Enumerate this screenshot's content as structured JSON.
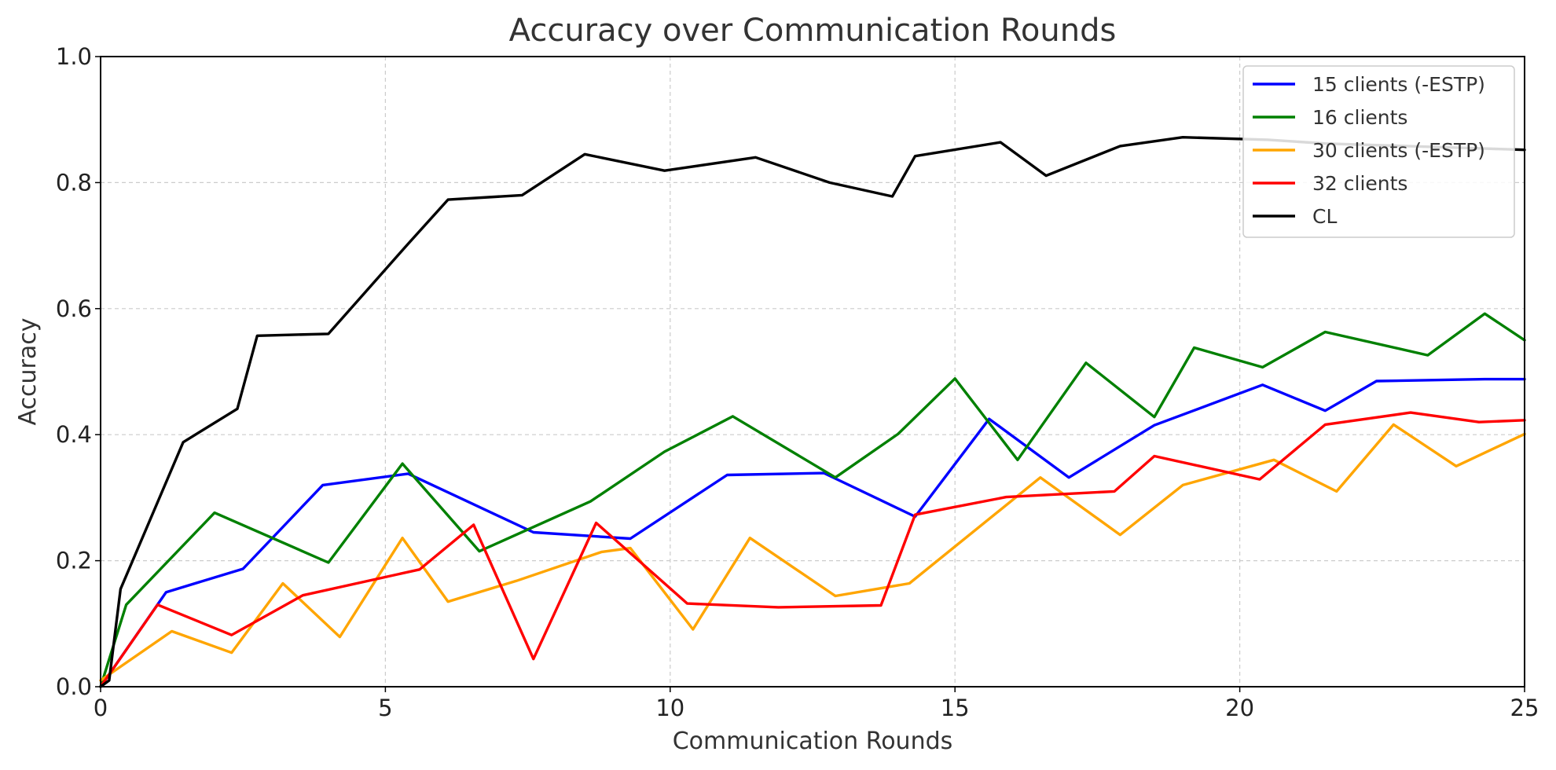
{
  "chart_data": {
    "type": "line",
    "title": "Accuracy over Communication Rounds",
    "xlabel": "Communication Rounds",
    "ylabel": "Accuracy",
    "xlim": [
      0,
      25
    ],
    "ylim": [
      0,
      1.0
    ],
    "x_ticks": [
      0,
      5,
      10,
      15,
      20,
      25
    ],
    "x_tick_labels": [
      "0",
      "5",
      "10",
      "15",
      "20",
      "25"
    ],
    "y_ticks": [
      0,
      0.2,
      0.4,
      0.6,
      0.8,
      1.0
    ],
    "y_tick_labels": [
      "0.0",
      "0.2",
      "0.4",
      "0.6",
      "0.8",
      "1.0"
    ],
    "grid": true,
    "legend_position": "top-right",
    "series": [
      {
        "name": "15 clients (-ESTP)",
        "color": "#0000ff",
        "points": [
          [
            0,
            0
          ],
          [
            1.15,
            0.15
          ],
          [
            2.5,
            0.187
          ],
          [
            3.9,
            0.32
          ],
          [
            5.4,
            0.338
          ],
          [
            7.6,
            0.245
          ],
          [
            9.3,
            0.235
          ],
          [
            11,
            0.336
          ],
          [
            12.7,
            0.339
          ],
          [
            14.3,
            0.27
          ],
          [
            15.6,
            0.425
          ],
          [
            17,
            0.332
          ],
          [
            18.5,
            0.415
          ],
          [
            20.4,
            0.479
          ],
          [
            21.5,
            0.438
          ],
          [
            22.4,
            0.485
          ],
          [
            24.3,
            0.488
          ],
          [
            25,
            0.488
          ]
        ]
      },
      {
        "name": "16 clients",
        "color": "#008000",
        "points": [
          [
            0,
            0
          ],
          [
            0.45,
            0.13
          ],
          [
            2,
            0.276
          ],
          [
            4,
            0.197
          ],
          [
            5.3,
            0.354
          ],
          [
            6.65,
            0.215
          ],
          [
            8.6,
            0.294
          ],
          [
            9.9,
            0.373
          ],
          [
            11.1,
            0.429
          ],
          [
            12.9,
            0.332
          ],
          [
            14,
            0.401
          ],
          [
            15,
            0.489
          ],
          [
            16.1,
            0.36
          ],
          [
            17.3,
            0.514
          ],
          [
            18.5,
            0.428
          ],
          [
            19.2,
            0.538
          ],
          [
            20.4,
            0.507
          ],
          [
            21.5,
            0.563
          ],
          [
            23.3,
            0.526
          ],
          [
            24.3,
            0.592
          ],
          [
            25,
            0.55
          ]
        ]
      },
      {
        "name": "30 clients (-ESTP)",
        "color": "#ffa500",
        "points": [
          [
            0,
            0.01
          ],
          [
            1.25,
            0.088
          ],
          [
            2.3,
            0.054
          ],
          [
            3.2,
            0.164
          ],
          [
            4.2,
            0.079
          ],
          [
            5.3,
            0.236
          ],
          [
            6.1,
            0.135
          ],
          [
            7.3,
            0.168
          ],
          [
            8.8,
            0.214
          ],
          [
            9.3,
            0.22
          ],
          [
            10.4,
            0.091
          ],
          [
            11.4,
            0.236
          ],
          [
            12.9,
            0.144
          ],
          [
            14.2,
            0.164
          ],
          [
            16.5,
            0.332
          ],
          [
            17.9,
            0.241
          ],
          [
            19,
            0.32
          ],
          [
            20.6,
            0.36
          ],
          [
            21.7,
            0.31
          ],
          [
            22.7,
            0.416
          ],
          [
            23.8,
            0.35
          ],
          [
            25,
            0.401
          ]
        ]
      },
      {
        "name": "32 clients",
        "color": "#ff0000",
        "points": [
          [
            0,
            0
          ],
          [
            1.0,
            0.13
          ],
          [
            2.3,
            0.082
          ],
          [
            3.55,
            0.145
          ],
          [
            5.6,
            0.186
          ],
          [
            6.55,
            0.257
          ],
          [
            7.6,
            0.044
          ],
          [
            8.7,
            0.26
          ],
          [
            10.3,
            0.132
          ],
          [
            11.9,
            0.126
          ],
          [
            13.7,
            0.129
          ],
          [
            14.3,
            0.273
          ],
          [
            15.9,
            0.301
          ],
          [
            17.8,
            0.31
          ],
          [
            18.5,
            0.366
          ],
          [
            20.35,
            0.329
          ],
          [
            21.5,
            0.416
          ],
          [
            23,
            0.435
          ],
          [
            24.2,
            0.42
          ],
          [
            25,
            0.423
          ]
        ]
      },
      {
        "name": "CL",
        "color": "#000000",
        "points": [
          [
            0,
            0
          ],
          [
            0.15,
            0.01
          ],
          [
            0.35,
            0.155
          ],
          [
            1.45,
            0.388
          ],
          [
            2.4,
            0.441
          ],
          [
            2.75,
            0.557
          ],
          [
            4,
            0.56
          ],
          [
            5.4,
            0.703
          ],
          [
            6.1,
            0.773
          ],
          [
            7.4,
            0.78
          ],
          [
            8.5,
            0.845
          ],
          [
            9.9,
            0.819
          ],
          [
            11.5,
            0.84
          ],
          [
            12.8,
            0.8
          ],
          [
            13.9,
            0.778
          ],
          [
            14.3,
            0.842
          ],
          [
            15.8,
            0.864
          ],
          [
            16.6,
            0.811
          ],
          [
            17.9,
            0.858
          ],
          [
            19,
            0.872
          ],
          [
            20.5,
            0.868
          ],
          [
            21.5,
            0.862
          ],
          [
            24.3,
            0.854
          ],
          [
            25,
            0.852
          ]
        ]
      }
    ]
  }
}
